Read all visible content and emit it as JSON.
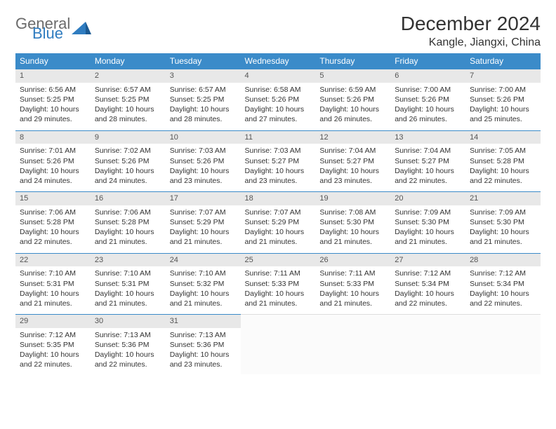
{
  "brand": {
    "word1": "General",
    "word2": "Blue"
  },
  "title": "December 2024",
  "location": "Kangle, Jiangxi, China",
  "colors": {
    "header_bg": "#3b8bc9",
    "header_text": "#ffffff",
    "daynum_bg": "#e8e8e8",
    "cell_border": "#3b8bc9",
    "brand_gray": "#6b6b6b",
    "brand_blue": "#2f7cc0"
  },
  "weekdays": [
    "Sunday",
    "Monday",
    "Tuesday",
    "Wednesday",
    "Thursday",
    "Friday",
    "Saturday"
  ],
  "days": [
    {
      "n": "1",
      "sunrise": "Sunrise: 6:56 AM",
      "sunset": "Sunset: 5:25 PM",
      "daylight": "Daylight: 10 hours and 29 minutes."
    },
    {
      "n": "2",
      "sunrise": "Sunrise: 6:57 AM",
      "sunset": "Sunset: 5:25 PM",
      "daylight": "Daylight: 10 hours and 28 minutes."
    },
    {
      "n": "3",
      "sunrise": "Sunrise: 6:57 AM",
      "sunset": "Sunset: 5:25 PM",
      "daylight": "Daylight: 10 hours and 28 minutes."
    },
    {
      "n": "4",
      "sunrise": "Sunrise: 6:58 AM",
      "sunset": "Sunset: 5:26 PM",
      "daylight": "Daylight: 10 hours and 27 minutes."
    },
    {
      "n": "5",
      "sunrise": "Sunrise: 6:59 AM",
      "sunset": "Sunset: 5:26 PM",
      "daylight": "Daylight: 10 hours and 26 minutes."
    },
    {
      "n": "6",
      "sunrise": "Sunrise: 7:00 AM",
      "sunset": "Sunset: 5:26 PM",
      "daylight": "Daylight: 10 hours and 26 minutes."
    },
    {
      "n": "7",
      "sunrise": "Sunrise: 7:00 AM",
      "sunset": "Sunset: 5:26 PM",
      "daylight": "Daylight: 10 hours and 25 minutes."
    },
    {
      "n": "8",
      "sunrise": "Sunrise: 7:01 AM",
      "sunset": "Sunset: 5:26 PM",
      "daylight": "Daylight: 10 hours and 24 minutes."
    },
    {
      "n": "9",
      "sunrise": "Sunrise: 7:02 AM",
      "sunset": "Sunset: 5:26 PM",
      "daylight": "Daylight: 10 hours and 24 minutes."
    },
    {
      "n": "10",
      "sunrise": "Sunrise: 7:03 AM",
      "sunset": "Sunset: 5:26 PM",
      "daylight": "Daylight: 10 hours and 23 minutes."
    },
    {
      "n": "11",
      "sunrise": "Sunrise: 7:03 AM",
      "sunset": "Sunset: 5:27 PM",
      "daylight": "Daylight: 10 hours and 23 minutes."
    },
    {
      "n": "12",
      "sunrise": "Sunrise: 7:04 AM",
      "sunset": "Sunset: 5:27 PM",
      "daylight": "Daylight: 10 hours and 23 minutes."
    },
    {
      "n": "13",
      "sunrise": "Sunrise: 7:04 AM",
      "sunset": "Sunset: 5:27 PM",
      "daylight": "Daylight: 10 hours and 22 minutes."
    },
    {
      "n": "14",
      "sunrise": "Sunrise: 7:05 AM",
      "sunset": "Sunset: 5:28 PM",
      "daylight": "Daylight: 10 hours and 22 minutes."
    },
    {
      "n": "15",
      "sunrise": "Sunrise: 7:06 AM",
      "sunset": "Sunset: 5:28 PM",
      "daylight": "Daylight: 10 hours and 22 minutes."
    },
    {
      "n": "16",
      "sunrise": "Sunrise: 7:06 AM",
      "sunset": "Sunset: 5:28 PM",
      "daylight": "Daylight: 10 hours and 21 minutes."
    },
    {
      "n": "17",
      "sunrise": "Sunrise: 7:07 AM",
      "sunset": "Sunset: 5:29 PM",
      "daylight": "Daylight: 10 hours and 21 minutes."
    },
    {
      "n": "18",
      "sunrise": "Sunrise: 7:07 AM",
      "sunset": "Sunset: 5:29 PM",
      "daylight": "Daylight: 10 hours and 21 minutes."
    },
    {
      "n": "19",
      "sunrise": "Sunrise: 7:08 AM",
      "sunset": "Sunset: 5:30 PM",
      "daylight": "Daylight: 10 hours and 21 minutes."
    },
    {
      "n": "20",
      "sunrise": "Sunrise: 7:09 AM",
      "sunset": "Sunset: 5:30 PM",
      "daylight": "Daylight: 10 hours and 21 minutes."
    },
    {
      "n": "21",
      "sunrise": "Sunrise: 7:09 AM",
      "sunset": "Sunset: 5:30 PM",
      "daylight": "Daylight: 10 hours and 21 minutes."
    },
    {
      "n": "22",
      "sunrise": "Sunrise: 7:10 AM",
      "sunset": "Sunset: 5:31 PM",
      "daylight": "Daylight: 10 hours and 21 minutes."
    },
    {
      "n": "23",
      "sunrise": "Sunrise: 7:10 AM",
      "sunset": "Sunset: 5:31 PM",
      "daylight": "Daylight: 10 hours and 21 minutes."
    },
    {
      "n": "24",
      "sunrise": "Sunrise: 7:10 AM",
      "sunset": "Sunset: 5:32 PM",
      "daylight": "Daylight: 10 hours and 21 minutes."
    },
    {
      "n": "25",
      "sunrise": "Sunrise: 7:11 AM",
      "sunset": "Sunset: 5:33 PM",
      "daylight": "Daylight: 10 hours and 21 minutes."
    },
    {
      "n": "26",
      "sunrise": "Sunrise: 7:11 AM",
      "sunset": "Sunset: 5:33 PM",
      "daylight": "Daylight: 10 hours and 21 minutes."
    },
    {
      "n": "27",
      "sunrise": "Sunrise: 7:12 AM",
      "sunset": "Sunset: 5:34 PM",
      "daylight": "Daylight: 10 hours and 22 minutes."
    },
    {
      "n": "28",
      "sunrise": "Sunrise: 7:12 AM",
      "sunset": "Sunset: 5:34 PM",
      "daylight": "Daylight: 10 hours and 22 minutes."
    },
    {
      "n": "29",
      "sunrise": "Sunrise: 7:12 AM",
      "sunset": "Sunset: 5:35 PM",
      "daylight": "Daylight: 10 hours and 22 minutes."
    },
    {
      "n": "30",
      "sunrise": "Sunrise: 7:13 AM",
      "sunset": "Sunset: 5:36 PM",
      "daylight": "Daylight: 10 hours and 22 minutes."
    },
    {
      "n": "31",
      "sunrise": "Sunrise: 7:13 AM",
      "sunset": "Sunset: 5:36 PM",
      "daylight": "Daylight: 10 hours and 23 minutes."
    }
  ]
}
